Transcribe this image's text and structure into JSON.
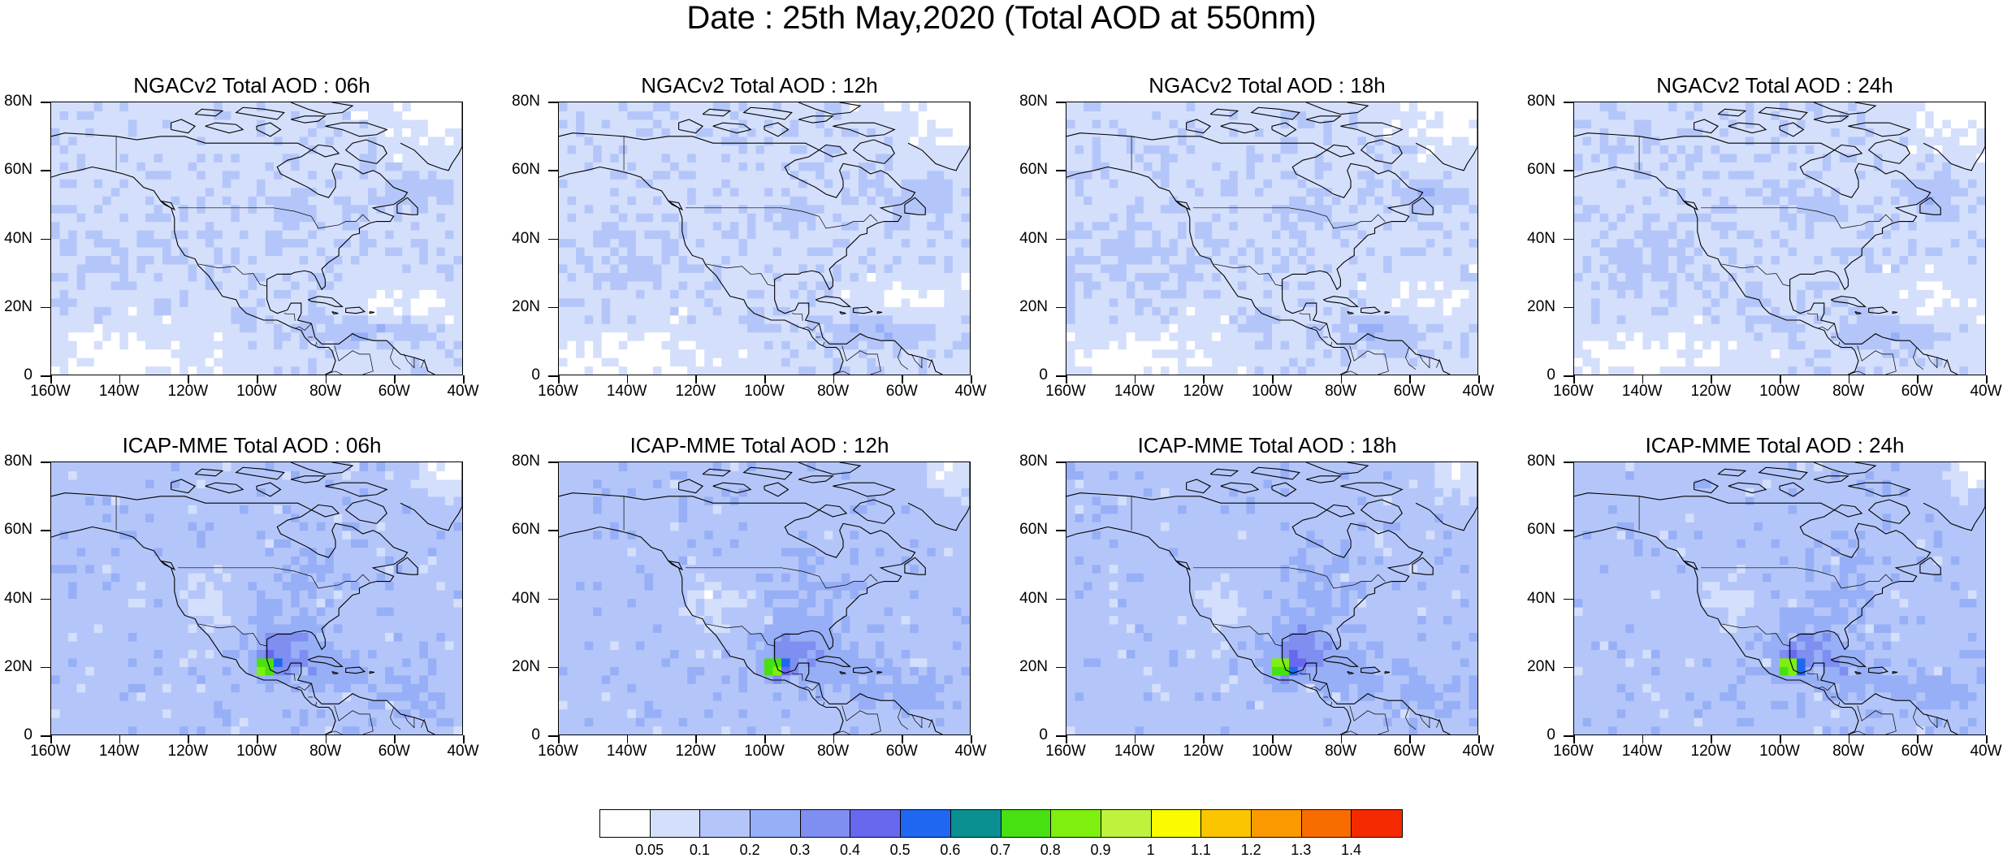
{
  "title": "Date : 25th May,2020 (Total AOD at 550nm)",
  "panels": [
    {
      "title": "NGACv2 Total AOD : 06h",
      "model": "ngac",
      "variant": 0
    },
    {
      "title": "NGACv2 Total AOD : 12h",
      "model": "ngac",
      "variant": 1
    },
    {
      "title": "NGACv2 Total AOD : 18h",
      "model": "ngac",
      "variant": 2
    },
    {
      "title": "NGACv2 Total AOD : 24h",
      "model": "ngac",
      "variant": 3
    },
    {
      "title": "ICAP-MME Total AOD : 06h",
      "model": "icap",
      "variant": 0
    },
    {
      "title": "ICAP-MME Total AOD : 12h",
      "model": "icap",
      "variant": 1
    },
    {
      "title": "ICAP-MME Total AOD : 18h",
      "model": "icap",
      "variant": 2
    },
    {
      "title": "ICAP-MME Total AOD : 24h",
      "model": "icap",
      "variant": 3
    }
  ],
  "lat_ticks": [
    "0",
    "20N",
    "40N",
    "60N",
    "80N"
  ],
  "lon_ticks": [
    "160W",
    "140W",
    "120W",
    "100W",
    "80W",
    "60W",
    "40W"
  ],
  "lon_range": [
    -160,
    -40
  ],
  "lat_range": [
    0,
    80
  ],
  "colorbar": {
    "labels": [
      "0.05",
      "0.1",
      "0.2",
      "0.3",
      "0.4",
      "0.5",
      "0.6",
      "0.7",
      "0.8",
      "0.9",
      "1",
      "1.1",
      "1.2",
      "1.3",
      "1.4"
    ],
    "colors": [
      "#ffffff",
      "#d4dffc",
      "#b4c6f9",
      "#97aff6",
      "#7e8ef1",
      "#6868ee",
      "#1f67f0",
      "#0a9090",
      "#47e010",
      "#7fef0f",
      "#bff23c",
      "#fafa00",
      "#fbc500",
      "#fb9a00",
      "#f96c00",
      "#f52a00"
    ]
  }
}
